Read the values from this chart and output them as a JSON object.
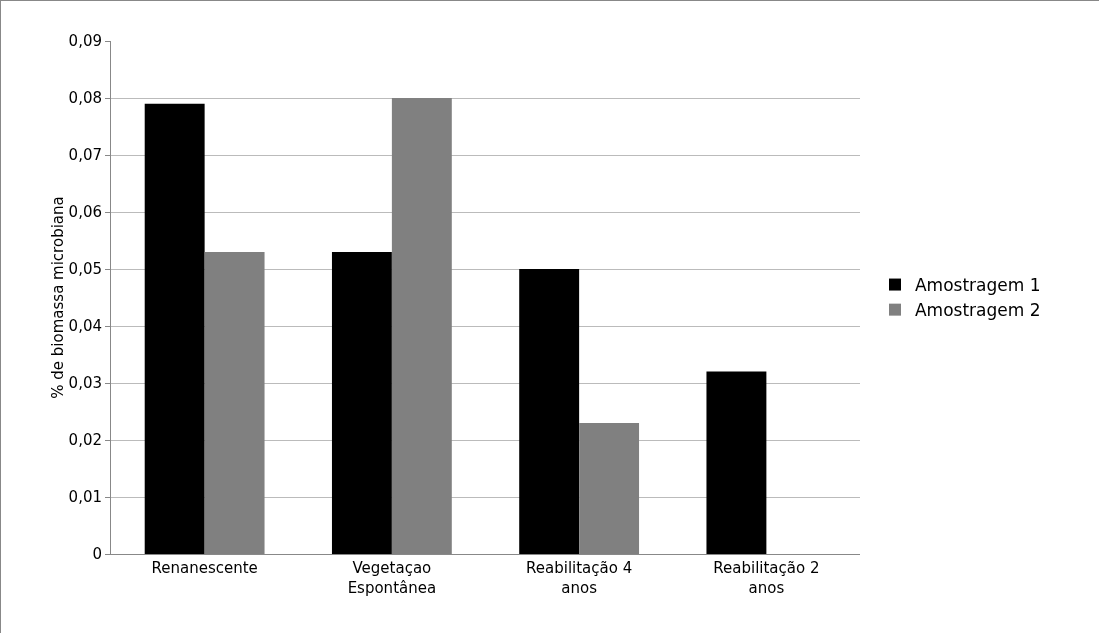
{
  "chart_data": {
    "type": "bar",
    "ylabel": "% de biomassa microbiana",
    "categories": [
      "Renanescente",
      "Vegetaçao Espontânea",
      "Reabilitação 4 anos",
      "Reabilitação 2 anos"
    ],
    "series": [
      {
        "name": "Amostragem 1",
        "color": "#000000",
        "values": [
          0.079,
          0.053,
          0.05,
          0.032
        ]
      },
      {
        "name": "Amostragem 2",
        "color": "#808080",
        "values": [
          0.053,
          0.08,
          0.023,
          null
        ]
      }
    ],
    "ylim": [
      0,
      0.09
    ],
    "yticks": [
      0,
      {
        "value": 0.01,
        "label": "0,01"
      },
      {
        "value": 0.02,
        "label": "0,02"
      },
      {
        "value": 0.03,
        "label": "0,03"
      },
      {
        "value": 0.04,
        "label": "0,04"
      },
      {
        "value": 0.05,
        "label": "0,05"
      },
      {
        "value": 0.06,
        "label": "0,06"
      },
      {
        "value": 0.07,
        "label": "0,07"
      },
      {
        "value": 0.08,
        "label": "0,08"
      },
      {
        "value": 0.09,
        "label": "0,09"
      }
    ],
    "grid": "y",
    "legend": "right"
  }
}
